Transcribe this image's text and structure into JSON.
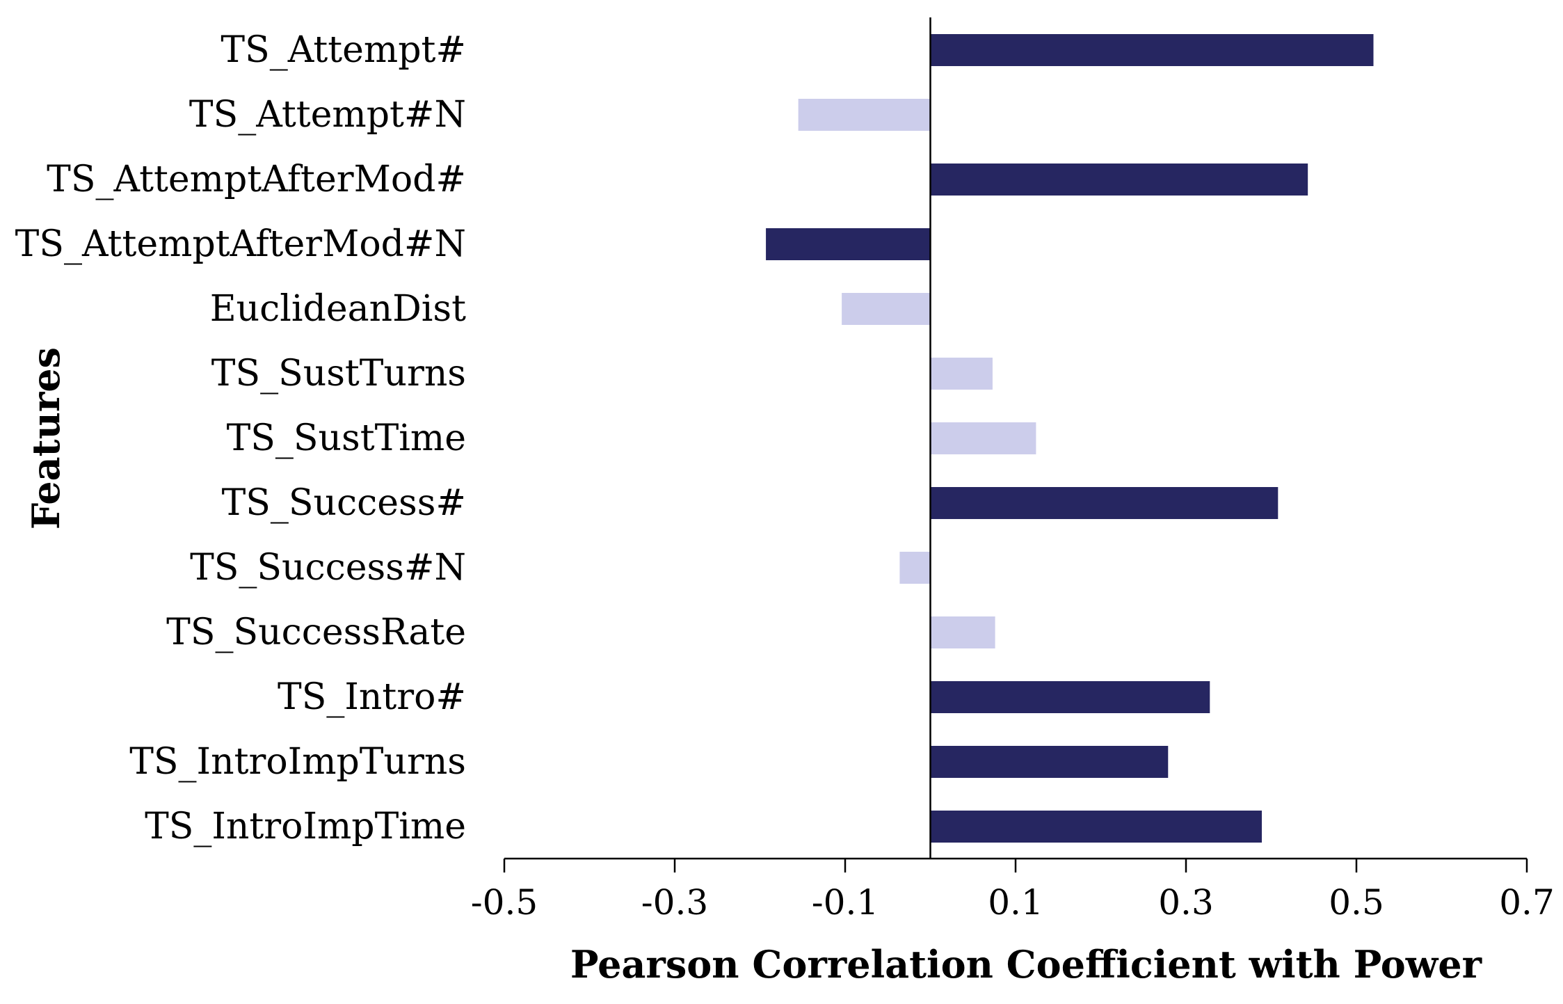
{
  "chart_data": {
    "type": "bar",
    "orientation": "horizontal",
    "title": "",
    "xlabel": "Pearson Correlation Coefficient with Power",
    "ylabel": "Features",
    "xlim": [
      -0.5,
      0.7
    ],
    "xticks": [
      -0.5,
      -0.3,
      -0.1,
      0.1,
      0.3,
      0.5,
      0.7
    ],
    "xtick_labels": [
      "-0.5",
      "-0.3",
      "-0.1",
      "0.1",
      "0.3",
      "0.5",
      "0.7"
    ],
    "grid": false,
    "legend": "none",
    "colors": {
      "significant": "#262661",
      "not_significant": "#cccdeb"
    },
    "categories": [
      "TS_Attempt#",
      "TS_Attempt#N",
      "TS_AttemptAfterMod#",
      "TS_AttemptAfterMod#N",
      "EuclideanDist",
      "TS_SustTurns",
      "TS_SustTime",
      "TS_Success#",
      "TS_Success#N",
      "TS_SuccessRate",
      "TS_Intro#",
      "TS_IntroImpTurns",
      "TS_IntroImpTime"
    ],
    "values": [
      0.52,
      -0.155,
      0.443,
      -0.193,
      -0.104,
      0.073,
      0.124,
      0.408,
      -0.036,
      0.076,
      0.328,
      0.279,
      0.389
    ],
    "significant": [
      true,
      false,
      true,
      true,
      false,
      false,
      false,
      true,
      false,
      false,
      true,
      true,
      true
    ]
  }
}
